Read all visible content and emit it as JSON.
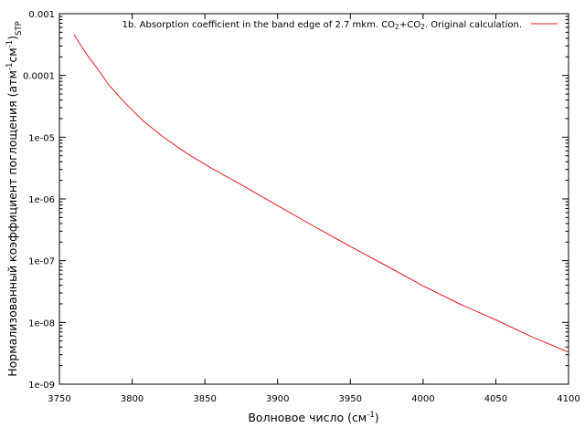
{
  "chart_data": {
    "type": "line",
    "xlabel": {
      "base": "Волновое число (см",
      "sup": "-1",
      "tail": ")"
    },
    "ylabel": {
      "base": "Нормализованный коэффициент поглощения (атм",
      "sup1": "-1",
      "mid": "см",
      "sup2": "-1",
      "tail": ")",
      "sub": "STP"
    },
    "xlim": [
      3750,
      4100
    ],
    "ylim": [
      1e-09,
      0.001
    ],
    "yscale": "log",
    "grid": false,
    "legend_position": "top-right",
    "x_ticks": [
      3750,
      3800,
      3850,
      3900,
      3950,
      4000,
      4050,
      4100
    ],
    "x_tick_labels": [
      "3750",
      "3800",
      "3850",
      "3900",
      "3950",
      "4000",
      "4050",
      "4100"
    ],
    "y_ticks": [
      1e-09,
      1e-08,
      1e-07,
      1e-06,
      1e-05,
      0.0001,
      0.001
    ],
    "y_tick_labels": [
      "1e-09",
      "1e-08",
      "1e-07",
      "1e-06",
      "1e-05",
      "0.0001",
      "0.001"
    ],
    "series": [
      {
        "name": "1b. Absorption coefficient in the band edge of 2.7 mkm. CO2+CO2. Original calculation.",
        "legend_parts": [
          {
            "t": "1b. Absorption coefficient in the band edge of 2.7 mkm. CO"
          },
          {
            "t": "2",
            "sub": true
          },
          {
            "t": "+CO"
          },
          {
            "t": "2",
            "sub": true
          },
          {
            "t": ". Original calculation."
          }
        ],
        "color": "#e41a1c",
        "x": [
          3760,
          3765,
          3770,
          3776,
          3784,
          3795,
          3808,
          3822,
          3838,
          3855,
          3875,
          3900,
          3925,
          3950,
          3975,
          4000,
          4025,
          4050,
          4075,
          4100
        ],
        "y": [
          0.00046,
          0.0003,
          0.0002,
          0.00013,
          7e-05,
          3.6e-05,
          1.8e-05,
          9.8e-06,
          5.4e-06,
          3.1e-06,
          1.7e-06,
          7.8e-07,
          3.6e-07,
          1.7e-07,
          8.2e-08,
          3.9e-08,
          2e-08,
          1.1e-08,
          5.8e-09,
          3.3e-09
        ]
      }
    ]
  }
}
